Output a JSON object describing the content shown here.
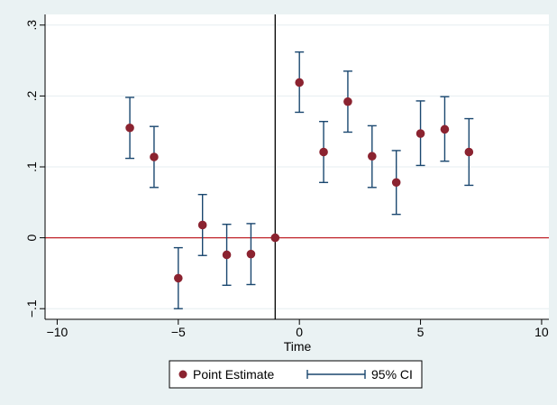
{
  "chart_data": {
    "type": "scatter",
    "xlabel": "Time",
    "ylabel": "",
    "xlim": [
      -10.5,
      10.3
    ],
    "ylim": [
      -0.115,
      0.315
    ],
    "xticks": [
      -10,
      -5,
      0,
      5,
      10
    ],
    "xtick_labels": [
      "−10",
      "−5",
      "0",
      "5",
      "10"
    ],
    "yticks": [
      -0.1,
      0,
      0.1,
      0.2,
      0.3
    ],
    "ytick_labels": [
      "−.1",
      "0",
      ".1",
      ".2",
      ".3"
    ],
    "reference_lines": {
      "horizontal_y": 0,
      "vertical_x": -1
    },
    "grid": true,
    "legend_position": "bottom",
    "series": [
      {
        "name": "Point Estimate",
        "kind": "point",
        "x": [
          -7,
          -6,
          -5,
          -4,
          -3,
          -2,
          -1,
          0,
          1,
          2,
          3,
          4,
          5,
          6,
          7
        ],
        "y": [
          0.155,
          0.114,
          -0.057,
          0.018,
          -0.024,
          -0.023,
          0.0,
          0.219,
          0.121,
          0.192,
          0.115,
          0.078,
          0.147,
          0.153,
          0.121
        ]
      },
      {
        "name": "95% CI",
        "kind": "range",
        "x": [
          -7,
          -6,
          -5,
          -4,
          -3,
          -2,
          0,
          1,
          2,
          3,
          4,
          5,
          6,
          7
        ],
        "low": [
          0.112,
          0.071,
          -0.1,
          -0.025,
          -0.067,
          -0.066,
          0.177,
          0.078,
          0.149,
          0.071,
          0.033,
          0.102,
          0.108,
          0.074
        ],
        "high": [
          0.198,
          0.157,
          -0.014,
          0.061,
          0.019,
          0.02,
          0.262,
          0.164,
          0.235,
          0.158,
          0.123,
          0.193,
          0.199,
          0.168
        ]
      }
    ],
    "colors": {
      "page_bg": "#eaf2f3",
      "plot_bg": "#ffffff",
      "point": "#8b2330",
      "ci": "#1a476f",
      "zero_line": "#c0242b",
      "vline": "#000000",
      "grid": "#e6eef0"
    }
  }
}
